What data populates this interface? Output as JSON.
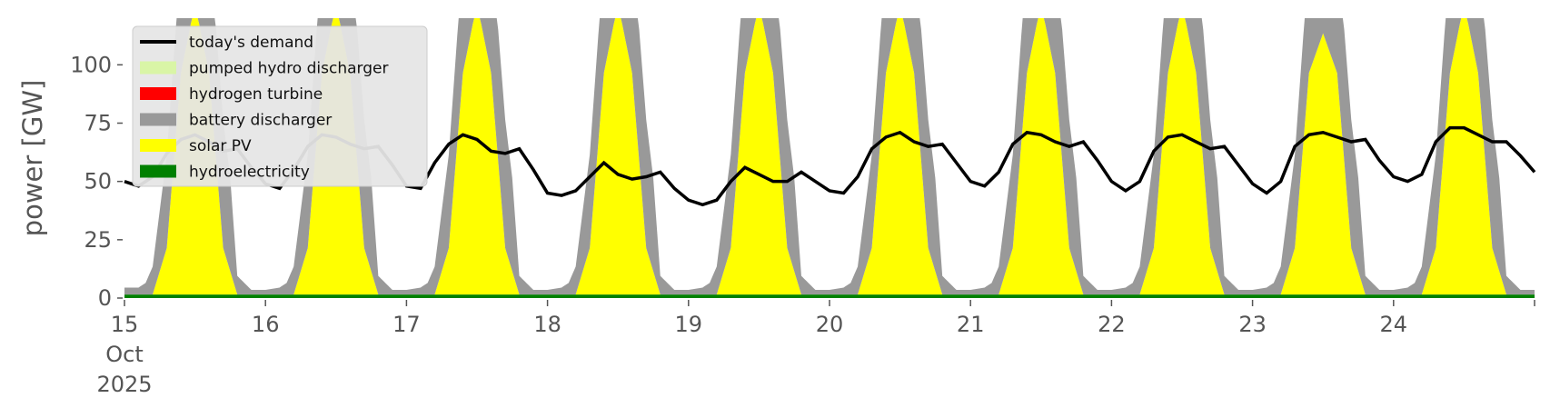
{
  "chart_data": {
    "type": "area",
    "title": "",
    "ylabel": "power [GW]",
    "xlabel": "",
    "xlim": [
      0,
      10
    ],
    "ylim": [
      0,
      120
    ],
    "grid": false,
    "legend_position": "top-left",
    "x_ticks": [
      {
        "x": 0,
        "lines": [
          "15",
          "Oct",
          "2025"
        ]
      },
      {
        "x": 1,
        "lines": [
          "16"
        ]
      },
      {
        "x": 2,
        "lines": [
          "17"
        ]
      },
      {
        "x": 3,
        "lines": [
          "18"
        ]
      },
      {
        "x": 4,
        "lines": [
          "19"
        ]
      },
      {
        "x": 5,
        "lines": [
          "20"
        ]
      },
      {
        "x": 6,
        "lines": [
          "21"
        ]
      },
      {
        "x": 7,
        "lines": [
          "22"
        ]
      },
      {
        "x": 8,
        "lines": [
          "23"
        ]
      },
      {
        "x": 9,
        "lines": [
          "24"
        ]
      }
    ],
    "y_ticks": [
      0,
      25,
      50,
      75,
      100
    ],
    "legend": [
      {
        "label": "today's demand",
        "kind": "line",
        "color": "#000000"
      },
      {
        "label": "pumped hydro discharger",
        "kind": "patch",
        "color": "#d9f5a6"
      },
      {
        "label": "hydrogen turbine",
        "kind": "patch",
        "color": "#ff0000"
      },
      {
        "label": "battery discharger",
        "kind": "patch",
        "color": "#999999"
      },
      {
        "label": "solar PV",
        "kind": "patch",
        "color": "#ffff00"
      },
      {
        "label": "hydroelectricity",
        "kind": "patch",
        "color": "#008000"
      }
    ],
    "stack_order": [
      "hydroelectricity",
      "solar PV",
      "battery discharger",
      "hydrogen turbine",
      "pumped hydro discharger"
    ],
    "series": [
      {
        "name": "hydroelectricity",
        "color": "#008000",
        "x": [
          0,
          10
        ],
        "values": [
          1.5,
          1.5
        ]
      },
      {
        "name": "solar PV",
        "color": "#ffff00",
        "x": [
          0,
          0.2,
          0.3,
          0.4,
          0.5,
          0.6,
          0.7,
          0.8,
          1.0,
          1.2,
          1.3,
          1.4,
          1.5,
          1.6,
          1.7,
          1.8,
          2.0,
          2.2,
          2.3,
          2.4,
          2.5,
          2.6,
          2.7,
          2.8,
          3.0,
          3.2,
          3.3,
          3.4,
          3.5,
          3.6,
          3.7,
          3.8,
          4.0,
          4.2,
          4.3,
          4.4,
          4.5,
          4.6,
          4.7,
          4.8,
          5.0,
          5.2,
          5.3,
          5.4,
          5.5,
          5.6,
          5.7,
          5.8,
          6.0,
          6.2,
          6.3,
          6.4,
          6.5,
          6.6,
          6.7,
          6.8,
          7.0,
          7.2,
          7.3,
          7.4,
          7.5,
          7.6,
          7.7,
          7.8,
          8.0,
          8.2,
          8.3,
          8.4,
          8.5,
          8.6,
          8.7,
          8.8,
          9.0,
          9.2,
          9.3,
          9.4,
          9.5,
          9.6,
          9.7,
          9.8,
          10.0
        ],
        "values": [
          0,
          0,
          20,
          95,
          125,
          95,
          20,
          0,
          0,
          0,
          20,
          95,
          125,
          95,
          20,
          0,
          0,
          0,
          20,
          95,
          125,
          95,
          20,
          0,
          0,
          0,
          20,
          95,
          125,
          95,
          20,
          0,
          0,
          0,
          20,
          95,
          125,
          95,
          20,
          0,
          0,
          0,
          20,
          95,
          125,
          95,
          20,
          0,
          0,
          0,
          20,
          95,
          125,
          95,
          20,
          0,
          0,
          0,
          20,
          95,
          125,
          95,
          20,
          0,
          0,
          0,
          20,
          95,
          112,
          95,
          20,
          0,
          0,
          0,
          20,
          95,
          125,
          95,
          20,
          0,
          0
        ]
      },
      {
        "name": "battery discharger",
        "color": "#999999",
        "x": [
          0,
          0.1,
          0.15,
          0.2,
          0.3,
          0.5,
          0.7,
          0.75,
          0.8,
          0.9,
          1.0,
          1.1,
          1.15,
          1.2,
          1.3,
          1.5,
          1.7,
          1.75,
          1.8,
          1.9,
          2.0,
          2.1,
          2.15,
          2.2,
          2.3,
          2.5,
          2.7,
          2.75,
          2.8,
          2.9,
          3.0,
          3.1,
          3.15,
          3.2,
          3.3,
          3.5,
          3.7,
          3.75,
          3.8,
          3.9,
          4.0,
          4.1,
          4.15,
          4.2,
          4.3,
          4.5,
          4.7,
          4.75,
          4.8,
          4.9,
          5.0,
          5.1,
          5.15,
          5.2,
          5.3,
          5.5,
          5.7,
          5.75,
          5.8,
          5.9,
          6.0,
          6.1,
          6.15,
          6.2,
          6.3,
          6.5,
          6.7,
          6.75,
          6.8,
          6.9,
          7.0,
          7.1,
          7.15,
          7.2,
          7.3,
          7.5,
          7.7,
          7.75,
          7.8,
          7.9,
          8.0,
          8.1,
          8.15,
          8.2,
          8.3,
          8.5,
          8.7,
          8.75,
          8.8,
          8.9,
          9.0,
          9.1,
          9.15,
          9.2,
          9.3,
          9.5,
          9.7,
          9.75,
          9.8,
          9.9,
          10.0
        ],
        "values": [
          3,
          3,
          5,
          12,
          40,
          60,
          55,
          40,
          8,
          2,
          2,
          3,
          5,
          12,
          40,
          60,
          55,
          40,
          8,
          2,
          2,
          3,
          5,
          12,
          40,
          60,
          55,
          40,
          8,
          2,
          2,
          3,
          5,
          12,
          40,
          60,
          55,
          40,
          8,
          2,
          2,
          3,
          5,
          12,
          40,
          60,
          55,
          40,
          8,
          2,
          2,
          3,
          5,
          12,
          40,
          60,
          55,
          40,
          8,
          2,
          2,
          3,
          5,
          12,
          40,
          60,
          55,
          40,
          8,
          2,
          2,
          3,
          5,
          12,
          40,
          60,
          55,
          40,
          8,
          2,
          2,
          3,
          5,
          12,
          40,
          60,
          55,
          40,
          8,
          2,
          2,
          3,
          5,
          12,
          40,
          60,
          55,
          40,
          8,
          2,
          2
        ]
      },
      {
        "name": "hydrogen turbine",
        "color": "#ff0000",
        "x": [
          0,
          10
        ],
        "values": [
          0,
          0
        ]
      },
      {
        "name": "pumped hydro discharger",
        "color": "#d9f5a6",
        "x": [
          0,
          10
        ],
        "values": [
          0,
          0
        ]
      }
    ],
    "demand": {
      "name": "today's demand",
      "color": "#000000",
      "x": [
        0,
        0.1,
        0.2,
        0.3,
        0.4,
        0.5,
        0.6,
        0.7,
        0.8,
        0.9,
        1.0,
        1.1,
        1.2,
        1.3,
        1.4,
        1.5,
        1.6,
        1.7,
        1.8,
        1.9,
        2.0,
        2.1,
        2.2,
        2.3,
        2.4,
        2.5,
        2.6,
        2.7,
        2.8,
        2.9,
        3.0,
        3.1,
        3.2,
        3.3,
        3.4,
        3.5,
        3.6,
        3.7,
        3.8,
        3.9,
        4.0,
        4.1,
        4.2,
        4.3,
        4.4,
        4.5,
        4.6,
        4.7,
        4.8,
        4.9,
        5.0,
        5.1,
        5.2,
        5.3,
        5.4,
        5.5,
        5.6,
        5.7,
        5.8,
        5.9,
        6.0,
        6.1,
        6.2,
        6.3,
        6.4,
        6.5,
        6.6,
        6.7,
        6.8,
        6.9,
        7.0,
        7.1,
        7.2,
        7.3,
        7.4,
        7.5,
        7.6,
        7.7,
        7.8,
        7.9,
        8.0,
        8.1,
        8.2,
        8.3,
        8.4,
        8.5,
        8.6,
        8.7,
        8.8,
        8.9,
        9.0,
        9.1,
        9.2,
        9.3,
        9.4,
        9.5,
        9.6,
        9.7,
        9.8,
        9.9,
        10.0
      ],
      "values": [
        50,
        48,
        52,
        62,
        68,
        70,
        67,
        63,
        64,
        56,
        49,
        47,
        55,
        65,
        70,
        69,
        66,
        64,
        65,
        57,
        48,
        47,
        58,
        66,
        70,
        68,
        63,
        62,
        64,
        55,
        45,
        44,
        46,
        52,
        58,
        53,
        51,
        52,
        54,
        47,
        42,
        40,
        42,
        50,
        56,
        53,
        50,
        50,
        54,
        50,
        46,
        45,
        52,
        64,
        69,
        71,
        67,
        65,
        66,
        58,
        50,
        48,
        54,
        66,
        71,
        70,
        67,
        65,
        67,
        59,
        50,
        46,
        50,
        63,
        69,
        70,
        67,
        64,
        65,
        57,
        49,
        45,
        50,
        65,
        70,
        71,
        69,
        67,
        68,
        59,
        52,
        50,
        53,
        67,
        73,
        73,
        70,
        67,
        67,
        61,
        54
      ]
    }
  }
}
